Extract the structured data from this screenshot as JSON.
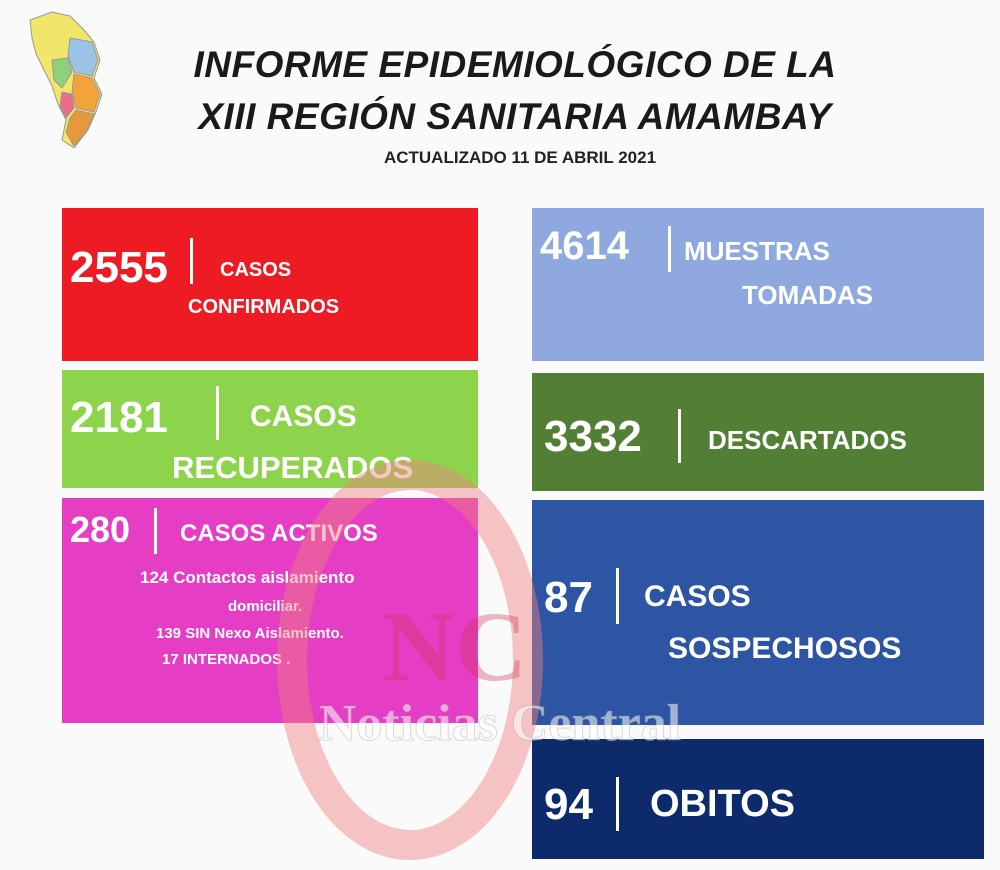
{
  "header": {
    "title_line1": "INFORME EPIDEMIOLÓGICO DE LA",
    "title_line2": "XIII REGIÓN SANITARIA AMAMBAY",
    "subtitle": "ACTUALIZADO 11 DE ABRIL 2021"
  },
  "cards": {
    "confirmados": {
      "number": "2555",
      "label_line1": "CASOS",
      "label_line2": "CONFIRMADOS",
      "color": "#ee1b24"
    },
    "recuperados": {
      "number": "2181",
      "label_line1": "CASOS",
      "label_line2": "RECUPERADOS",
      "color": "#8dd44c"
    },
    "activos": {
      "number": "280",
      "label": "CASOS ACTIVOS",
      "color": "#e63dc5",
      "details": [
        "124 Contactos aislamiento",
        "domiciliar.",
        "139 SIN Nexo Aislamiento.",
        "17 INTERNADOS ."
      ]
    },
    "muestras": {
      "number": "4614",
      "label_line1": "MUESTRAS",
      "label_line2": "TOMADAS",
      "color": "#8fa8e0"
    },
    "descartados": {
      "number": "3332",
      "label": "DESCARTADOS",
      "color": "#537e36"
    },
    "sospechosos": {
      "number": "87",
      "label_line1": "CASOS",
      "label_line2": "SOSPECHOSOS",
      "color": "#2e55a3"
    },
    "obitos": {
      "number": "94",
      "label": "OBITOS",
      "color": "#0d2a6b"
    }
  },
  "watermark": {
    "letters": "NC",
    "text": "Noticias Central"
  }
}
